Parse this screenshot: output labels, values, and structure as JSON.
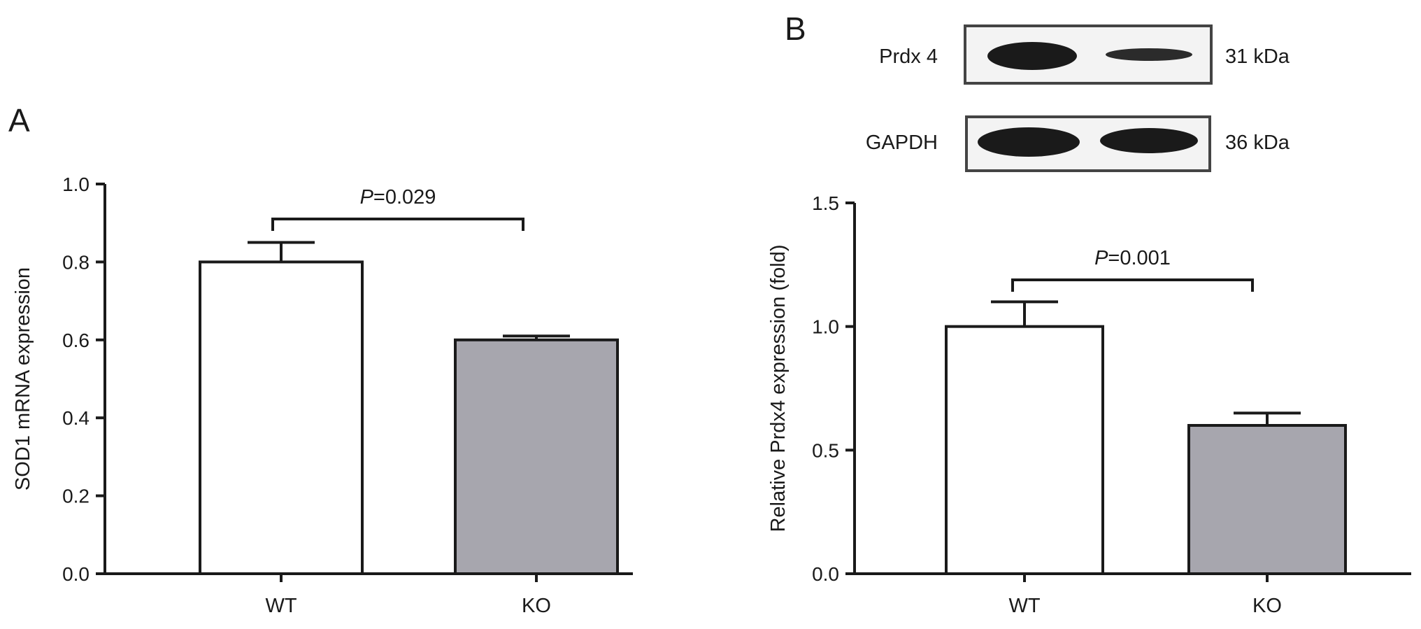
{
  "panels": {
    "a": {
      "letter": "A"
    },
    "b": {
      "letter": "B"
    }
  },
  "blot": {
    "rows": [
      {
        "protein": "Prdx 4",
        "size": "31 kDa",
        "band_intensity": [
          0.9,
          0.45
        ]
      },
      {
        "protein": "GAPDH",
        "size": "36 kDa",
        "band_intensity": [
          0.95,
          0.9
        ]
      }
    ]
  },
  "colors": {
    "wt_bar": "#ffffff",
    "ko_bar": "#a7a6ae",
    "stroke": "#1a1a1a"
  },
  "chart_data": [
    {
      "type": "bar",
      "panel": "A",
      "categories": [
        "WT",
        "KO"
      ],
      "values": [
        0.8,
        0.6
      ],
      "errors": [
        0.05,
        0.01
      ],
      "ylabel": "SOD1 mRNA expression",
      "xlabel": "",
      "ylim": [
        0.0,
        1.0
      ],
      "yticks": [
        "0.0",
        "0.2",
        "0.4",
        "0.6",
        "0.8",
        "1.0"
      ],
      "annotation": {
        "prefix": "P",
        "text": "=0.029"
      }
    },
    {
      "type": "bar",
      "panel": "B",
      "categories": [
        "WT",
        "KO"
      ],
      "values": [
        1.0,
        0.6
      ],
      "errors": [
        0.1,
        0.05
      ],
      "ylabel": "Relative Prdx4 expression (fold)",
      "xlabel": "",
      "ylim": [
        0.0,
        1.5
      ],
      "yticks": [
        "0.0",
        "0.5",
        "1.0",
        "1.5"
      ],
      "annotation": {
        "prefix": "P",
        "text": "=0.001"
      }
    }
  ]
}
